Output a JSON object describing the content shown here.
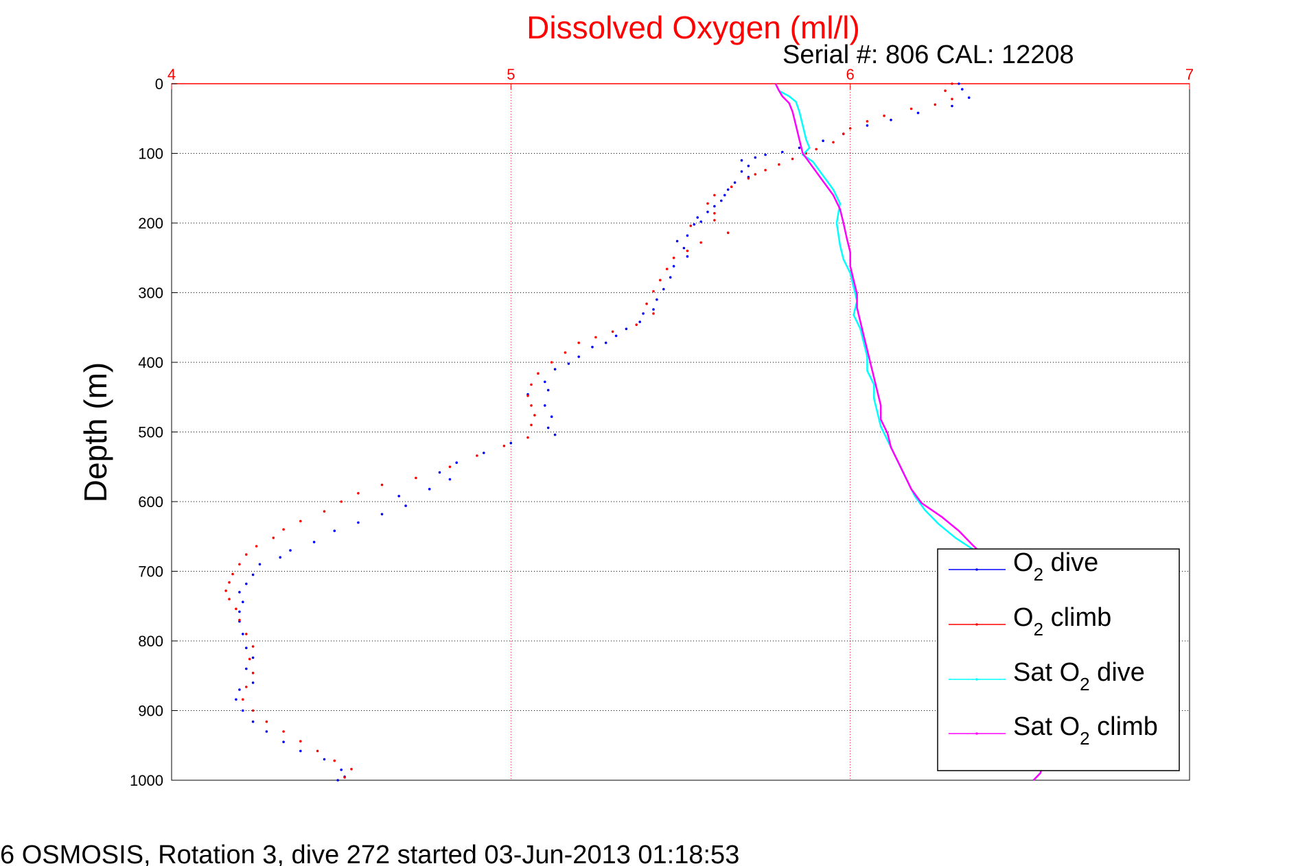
{
  "chart_data": {
    "type": "scatter",
    "title": "Dissolved Oxygen (ml/l)",
    "subtitle": "Serial #: 806  CAL: 12208",
    "ylabel": "Depth (m)",
    "xlabel": "",
    "xlim": [
      4,
      7
    ],
    "ylim": [
      0,
      1000
    ],
    "y_reversed": true,
    "x_axis_position": "top",
    "xticks": [
      "4",
      "5",
      "6",
      "7"
    ],
    "yticks": [
      "0",
      "100",
      "200",
      "300",
      "400",
      "500",
      "600",
      "700",
      "800",
      "900",
      "1000"
    ],
    "grid": true,
    "legend_position": "bottom-right",
    "caption": "6 OSMOSIS, Rotation 3, dive 272 started 03-Jun-2013 01:18:53",
    "series": [
      {
        "name": "dive",
        "label_main": "O",
        "label_sub": "2",
        "label_after": " dive",
        "color": "#0000ff",
        "style": "dots",
        "points": [
          [
            6.32,
            0
          ],
          [
            6.33,
            8
          ],
          [
            6.35,
            20
          ],
          [
            6.3,
            32
          ],
          [
            6.2,
            42
          ],
          [
            6.12,
            52
          ],
          [
            6.05,
            60
          ],
          [
            5.98,
            72
          ],
          [
            5.92,
            82
          ],
          [
            5.85,
            92
          ],
          [
            5.8,
            98
          ],
          [
            5.75,
            102
          ],
          [
            5.72,
            106
          ],
          [
            5.68,
            110
          ],
          [
            5.7,
            118
          ],
          [
            5.68,
            126
          ],
          [
            5.7,
            134
          ],
          [
            5.66,
            142
          ],
          [
            5.64,
            152
          ],
          [
            5.63,
            160
          ],
          [
            5.62,
            168
          ],
          [
            5.6,
            176
          ],
          [
            5.58,
            184
          ],
          [
            5.55,
            192
          ],
          [
            5.56,
            198
          ],
          [
            5.54,
            202
          ],
          [
            5.52,
            218
          ],
          [
            5.49,
            226
          ],
          [
            5.51,
            236
          ],
          [
            5.52,
            248
          ],
          [
            5.48,
            262
          ],
          [
            5.47,
            278
          ],
          [
            5.45,
            295
          ],
          [
            5.43,
            310
          ],
          [
            5.42,
            324
          ],
          [
            5.39,
            330
          ],
          [
            5.38,
            342
          ],
          [
            5.34,
            352
          ],
          [
            5.31,
            362
          ],
          [
            5.28,
            372
          ],
          [
            5.24,
            378
          ],
          [
            5.2,
            392
          ],
          [
            5.17,
            402
          ],
          [
            5.13,
            410
          ],
          [
            5.1,
            428
          ],
          [
            5.11,
            440
          ],
          [
            5.05,
            446
          ],
          [
            5.1,
            462
          ],
          [
            5.12,
            478
          ],
          [
            5.11,
            494
          ],
          [
            5.13,
            504
          ],
          [
            5.0,
            516
          ],
          [
            4.92,
            530
          ],
          [
            4.84,
            544
          ],
          [
            4.79,
            558
          ],
          [
            4.82,
            568
          ],
          [
            4.76,
            582
          ],
          [
            4.67,
            592
          ],
          [
            4.69,
            606
          ],
          [
            4.62,
            618
          ],
          [
            4.55,
            630
          ],
          [
            4.48,
            642
          ],
          [
            4.42,
            658
          ],
          [
            4.35,
            670
          ],
          [
            4.32,
            680
          ],
          [
            4.26,
            690
          ],
          [
            4.24,
            705
          ],
          [
            4.22,
            718
          ],
          [
            4.2,
            730
          ],
          [
            4.21,
            744
          ],
          [
            4.2,
            758
          ],
          [
            4.2,
            772
          ],
          [
            4.21,
            790
          ],
          [
            4.22,
            810
          ],
          [
            4.24,
            824
          ],
          [
            4.22,
            840
          ],
          [
            4.24,
            860
          ],
          [
            4.2,
            870
          ],
          [
            4.19,
            884
          ],
          [
            4.21,
            900
          ],
          [
            4.24,
            916
          ],
          [
            4.28,
            930
          ],
          [
            4.33,
            945
          ],
          [
            4.38,
            958
          ],
          [
            4.45,
            970
          ],
          [
            4.5,
            985
          ],
          [
            4.51,
            995
          ],
          [
            4.49,
            1000
          ]
        ]
      },
      {
        "name": "climb",
        "label_main": "O",
        "label_sub": "2",
        "label_after": " climb",
        "color": "#ff0000",
        "style": "dots",
        "points": [
          [
            6.3,
            0
          ],
          [
            6.28,
            10
          ],
          [
            6.3,
            22
          ],
          [
            6.25,
            30
          ],
          [
            6.18,
            36
          ],
          [
            6.1,
            46
          ],
          [
            6.05,
            54
          ],
          [
            6.0,
            64
          ],
          [
            5.98,
            72
          ],
          [
            5.95,
            84
          ],
          [
            5.9,
            94
          ],
          [
            5.87,
            100
          ],
          [
            5.83,
            108
          ],
          [
            5.79,
            116
          ],
          [
            5.75,
            124
          ],
          [
            5.72,
            130
          ],
          [
            5.7,
            136
          ],
          [
            5.65,
            148
          ],
          [
            5.6,
            160
          ],
          [
            5.58,
            172
          ],
          [
            5.6,
            186
          ],
          [
            5.6,
            196
          ],
          [
            5.53,
            204
          ],
          [
            5.64,
            214
          ],
          [
            5.56,
            228
          ],
          [
            5.52,
            240
          ],
          [
            5.48,
            250
          ],
          [
            5.46,
            266
          ],
          [
            5.44,
            282
          ],
          [
            5.42,
            298
          ],
          [
            5.4,
            316
          ],
          [
            5.42,
            330
          ],
          [
            5.37,
            346
          ],
          [
            5.3,
            356
          ],
          [
            5.25,
            364
          ],
          [
            5.2,
            372
          ],
          [
            5.16,
            386
          ],
          [
            5.12,
            400
          ],
          [
            5.08,
            416
          ],
          [
            5.06,
            432
          ],
          [
            5.05,
            448
          ],
          [
            5.06,
            462
          ],
          [
            5.07,
            476
          ],
          [
            5.06,
            490
          ],
          [
            5.05,
            508
          ],
          [
            4.98,
            520
          ],
          [
            4.9,
            534
          ],
          [
            4.82,
            550
          ],
          [
            4.72,
            566
          ],
          [
            4.62,
            576
          ],
          [
            4.55,
            588
          ],
          [
            4.5,
            600
          ],
          [
            4.45,
            614
          ],
          [
            4.38,
            628
          ],
          [
            4.33,
            640
          ],
          [
            4.3,
            652
          ],
          [
            4.25,
            664
          ],
          [
            4.22,
            676
          ],
          [
            4.2,
            690
          ],
          [
            4.18,
            704
          ],
          [
            4.17,
            716
          ],
          [
            4.16,
            728
          ],
          [
            4.17,
            740
          ],
          [
            4.19,
            754
          ],
          [
            4.2,
            770
          ],
          [
            4.22,
            790
          ],
          [
            4.24,
            808
          ],
          [
            4.23,
            826
          ],
          [
            4.24,
            846
          ],
          [
            4.22,
            866
          ],
          [
            4.21,
            884
          ],
          [
            4.24,
            900
          ],
          [
            4.28,
            916
          ],
          [
            4.33,
            930
          ],
          [
            4.38,
            944
          ],
          [
            4.43,
            958
          ],
          [
            4.48,
            972
          ],
          [
            4.53,
            984
          ],
          [
            4.51,
            996
          ]
        ]
      },
      {
        "name": "Sat dive",
        "label_main": "Sat O",
        "label_sub": "2",
        "label_after": " dive",
        "color": "#00ffff",
        "style": "line",
        "points": [
          [
            5.78,
            0
          ],
          [
            5.79,
            10
          ],
          [
            5.82,
            18
          ],
          [
            5.84,
            26
          ],
          [
            5.85,
            40
          ],
          [
            5.86,
            60
          ],
          [
            5.87,
            80
          ],
          [
            5.88,
            92
          ],
          [
            5.86,
            102
          ],
          [
            5.89,
            112
          ],
          [
            5.92,
            132
          ],
          [
            5.95,
            152
          ],
          [
            5.97,
            172
          ],
          [
            5.96,
            200
          ],
          [
            5.97,
            232
          ],
          [
            5.98,
            252
          ],
          [
            6.0,
            272
          ],
          [
            6.01,
            292
          ],
          [
            6.02,
            312
          ],
          [
            6.01,
            332
          ],
          [
            6.03,
            352
          ],
          [
            6.04,
            372
          ],
          [
            6.05,
            392
          ],
          [
            6.05,
            412
          ],
          [
            6.07,
            432
          ],
          [
            6.07,
            452
          ],
          [
            6.08,
            472
          ],
          [
            6.09,
            492
          ],
          [
            6.11,
            512
          ],
          [
            6.13,
            532
          ],
          [
            6.15,
            552
          ],
          [
            6.17,
            572
          ],
          [
            6.19,
            592
          ],
          [
            6.22,
            612
          ],
          [
            6.26,
            632
          ],
          [
            6.31,
            652
          ],
          [
            6.36,
            668
          ],
          [
            6.42,
            690
          ],
          [
            6.52,
            740
          ],
          [
            6.6,
            800
          ],
          [
            6.62,
            860
          ],
          [
            6.6,
            920
          ],
          [
            6.58,
            960
          ],
          [
            6.56,
            990
          ],
          [
            6.54,
            1000
          ]
        ]
      },
      {
        "name": "Sat climb",
        "label_main": "Sat O",
        "label_sub": "2",
        "label_after": " climb",
        "color": "#ff00ff",
        "style": "line",
        "points": [
          [
            5.78,
            0
          ],
          [
            5.79,
            10
          ],
          [
            5.8,
            18
          ],
          [
            5.82,
            28
          ],
          [
            5.83,
            40
          ],
          [
            5.84,
            60
          ],
          [
            5.85,
            80
          ],
          [
            5.86,
            100
          ],
          [
            5.89,
            120
          ],
          [
            5.92,
            140
          ],
          [
            5.95,
            160
          ],
          [
            5.97,
            180
          ],
          [
            5.98,
            200
          ],
          [
            5.99,
            222
          ],
          [
            6.0,
            242
          ],
          [
            6.0,
            262
          ],
          [
            6.01,
            282
          ],
          [
            6.02,
            302
          ],
          [
            6.02,
            322
          ],
          [
            6.03,
            342
          ],
          [
            6.04,
            362
          ],
          [
            6.05,
            382
          ],
          [
            6.06,
            402
          ],
          [
            6.07,
            422
          ],
          [
            6.08,
            442
          ],
          [
            6.09,
            462
          ],
          [
            6.09,
            482
          ],
          [
            6.11,
            502
          ],
          [
            6.12,
            522
          ],
          [
            6.14,
            542
          ],
          [
            6.16,
            562
          ],
          [
            6.18,
            582
          ],
          [
            6.21,
            602
          ],
          [
            6.27,
            622
          ],
          [
            6.32,
            642
          ],
          [
            6.36,
            662
          ],
          [
            6.42,
            690
          ],
          [
            6.52,
            740
          ],
          [
            6.6,
            800
          ],
          [
            6.62,
            860
          ],
          [
            6.6,
            920
          ],
          [
            6.58,
            960
          ],
          [
            6.56,
            990
          ],
          [
            6.54,
            1000
          ]
        ]
      }
    ]
  }
}
